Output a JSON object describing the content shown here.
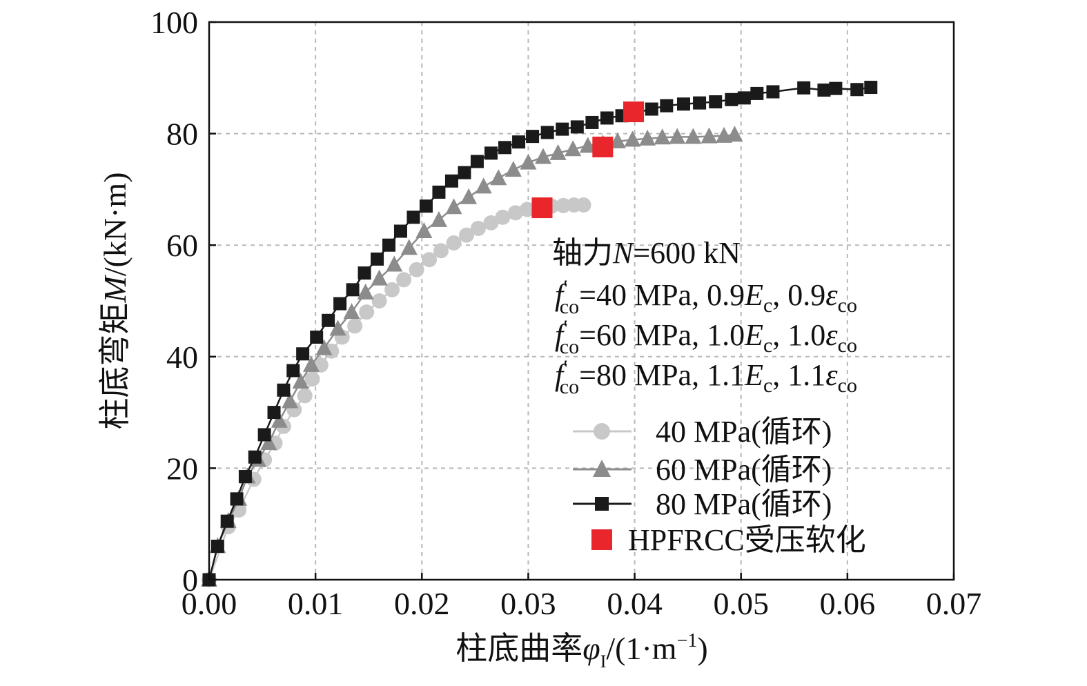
{
  "chart_data": {
    "type": "line",
    "xlabel": {
      "main": "柱底曲率",
      "sym": "φ",
      "sub": "I",
      "unit": "/(1·m",
      "sup": "−1",
      "close": ")"
    },
    "ylabel": {
      "main": "柱底弯矩",
      "sym": "M",
      "unit": "/(kN·m)"
    },
    "xlim": [
      0,
      0.07
    ],
    "ylim": [
      0,
      100
    ],
    "x_ticks": [
      "0.00",
      "0.01",
      "0.02",
      "0.03",
      "0.04",
      "0.05",
      "0.06",
      "0.07"
    ],
    "y_ticks": [
      "0",
      "20",
      "40",
      "60",
      "80",
      "100"
    ],
    "grid": true,
    "annotations": {
      "axial": {
        "prefix": "轴力",
        "sym": "N",
        "rest": "=600 kN"
      },
      "lines": [
        {
          "f": "f",
          "prime": "′",
          "sub": "co",
          "val": "=40 MPa, 0.9",
          "E": "E",
          "Esub": "c",
          "mid": ", 0.9",
          "eps": "ε",
          "epssub": "co"
        },
        {
          "f": "f",
          "prime": "′",
          "sub": "co",
          "val": "=60 MPa, 1.0",
          "E": "E",
          "Esub": "c",
          "mid": ", 1.0",
          "eps": "ε",
          "epssub": "co"
        },
        {
          "f": "f",
          "prime": "′",
          "sub": "co",
          "val": "=80 MPa, 1.1",
          "E": "E",
          "Esub": "c",
          "mid": ", 1.1",
          "eps": "ε",
          "epssub": "co"
        }
      ]
    },
    "series": [
      {
        "name": "40 MPa(循环)",
        "marker": "circle",
        "color": "#c8c8c8",
        "x": [
          0.0,
          0.0018,
          0.0028,
          0.0042,
          0.0052,
          0.0062,
          0.007,
          0.008,
          0.009,
          0.0097,
          0.0105,
          0.0115,
          0.0125,
          0.0137,
          0.0148,
          0.016,
          0.0172,
          0.0183,
          0.0195,
          0.0207,
          0.0218,
          0.023,
          0.0242,
          0.0253,
          0.0265,
          0.0276,
          0.0288,
          0.0299,
          0.031,
          0.0322,
          0.0333,
          0.0343,
          0.0352
        ],
        "y": [
          0,
          9.5,
          12.5,
          18,
          21.5,
          24.5,
          27.5,
          30.5,
          33,
          36,
          38.5,
          41,
          43.5,
          45.5,
          48,
          50,
          52,
          53.8,
          55.6,
          57.4,
          59,
          60.4,
          61.8,
          63,
          64,
          65,
          65.8,
          66.4,
          66.8,
          67,
          67.1,
          67.2,
          67.2
        ]
      },
      {
        "name": "60 MPa(循环)",
        "marker": "triangle",
        "color": "#8c8c8c",
        "x": [
          0.0,
          0.0008,
          0.0018,
          0.0028,
          0.0036,
          0.0046,
          0.0056,
          0.0066,
          0.0076,
          0.0086,
          0.0096,
          0.0108,
          0.0121,
          0.0134,
          0.0147,
          0.016,
          0.0174,
          0.0188,
          0.0202,
          0.0216,
          0.023,
          0.0244,
          0.0258,
          0.0272,
          0.0286,
          0.03,
          0.0314,
          0.0328,
          0.0342,
          0.0356,
          0.037,
          0.0384,
          0.0398,
          0.0412,
          0.0426,
          0.044,
          0.0455,
          0.047,
          0.0484,
          0.0494
        ],
        "y": [
          0,
          6,
          10.5,
          14.5,
          18.5,
          21.5,
          24.5,
          28.5,
          32,
          35.5,
          38.5,
          41.5,
          45,
          48,
          51.5,
          54,
          56.5,
          59.5,
          62.5,
          64.5,
          66.8,
          68.6,
          70.5,
          72,
          73.5,
          74.8,
          75.8,
          76.5,
          77.2,
          77.8,
          78.2,
          78.6,
          78.9,
          79.1,
          79.3,
          79.4,
          79.4,
          79.5,
          79.6,
          79.8
        ]
      },
      {
        "name": "80 MPa(循环)",
        "marker": "square",
        "color": "#1a1a1a",
        "x": [
          0.0,
          0.0008,
          0.0017,
          0.0026,
          0.0034,
          0.0043,
          0.0052,
          0.0061,
          0.007,
          0.0079,
          0.0088,
          0.0101,
          0.0112,
          0.0123,
          0.0135,
          0.0146,
          0.0158,
          0.0169,
          0.018,
          0.0192,
          0.0204,
          0.0216,
          0.0228,
          0.024,
          0.0252,
          0.0265,
          0.0278,
          0.0291,
          0.0304,
          0.0318,
          0.0332,
          0.0346,
          0.036,
          0.0374,
          0.0388,
          0.0402,
          0.0416,
          0.043,
          0.0446,
          0.0461,
          0.0476,
          0.0491,
          0.0503,
          0.0515,
          0.053,
          0.0559,
          0.0578,
          0.0589,
          0.0609,
          0.0622
        ],
        "y": [
          0,
          6,
          10.5,
          14.5,
          18.5,
          22,
          26,
          30,
          34,
          37.5,
          40.5,
          43.5,
          46.5,
          49.5,
          52,
          55,
          57.5,
          60,
          62.5,
          65,
          67,
          69.5,
          71.5,
          73,
          75,
          76.5,
          77.5,
          78.5,
          79.5,
          80.2,
          80.8,
          81.2,
          82,
          82.8,
          83.2,
          83.8,
          84.4,
          85,
          85.3,
          85.5,
          85.7,
          86.1,
          86.4,
          87.2,
          87.5,
          88.2,
          87.8,
          88.1,
          87.9,
          88.3
        ]
      }
    ],
    "softening": {
      "name": "HPFRCC受压软化",
      "marker": "square",
      "color": "#e8262c",
      "x": [
        0.0313,
        0.037,
        0.0399
      ],
      "y": [
        66.7,
        77.6,
        83.9
      ]
    }
  }
}
